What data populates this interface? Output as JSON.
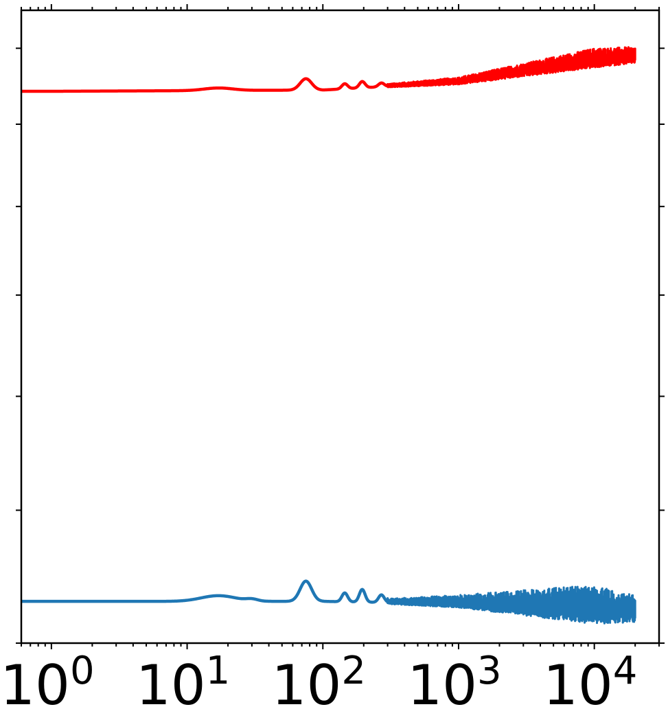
{
  "chart_data": {
    "type": "line",
    "xscale": "log",
    "xlim": [
      0.6,
      30000
    ],
    "ylim": [
      0,
      1
    ],
    "grid": false,
    "legend": "none",
    "x_tick_labels": [
      {
        "base": "10",
        "exp": "0",
        "value": 1
      },
      {
        "base": "10",
        "exp": "1",
        "value": 10
      },
      {
        "base": "10",
        "exp": "2",
        "value": 100
      },
      {
        "base": "10",
        "exp": "3",
        "value": 1000
      },
      {
        "base": "10",
        "exp": "4",
        "value": 10000
      }
    ],
    "y_ticks": [
      0.0,
      0.21,
      0.39,
      0.55,
      0.69,
      0.82,
      0.94
    ],
    "series": [
      {
        "color": "#ff0000",
        "baseline": 0.872,
        "trend": [
          [
            1,
            0.872
          ],
          [
            10,
            0.873
          ],
          [
            100,
            0.874
          ],
          [
            1000,
            0.886
          ],
          [
            10000,
            0.918
          ],
          [
            20000,
            0.924
          ]
        ],
        "features": [
          [
            17,
            0.004,
            0.15
          ],
          [
            75,
            0.018,
            0.06
          ],
          [
            145,
            0.008,
            0.03
          ],
          [
            195,
            0.01,
            0.03
          ],
          [
            270,
            0.006,
            0.03
          ]
        ],
        "noise_start": 300,
        "noise_amp": [
          [
            300,
            0.004
          ],
          [
            1000,
            0.008
          ],
          [
            10000,
            0.022
          ],
          [
            20000,
            0.018
          ]
        ]
      },
      {
        "color": "#1f77b4",
        "baseline": 0.066,
        "trend": [
          [
            1,
            0.066
          ],
          [
            10,
            0.066
          ],
          [
            100,
            0.066
          ],
          [
            1000,
            0.062
          ],
          [
            10000,
            0.048
          ],
          [
            20000,
            0.045
          ]
        ],
        "features": [
          [
            17,
            0.009,
            0.18
          ],
          [
            30,
            0.003,
            0.06
          ],
          [
            75,
            0.032,
            0.06
          ],
          [
            145,
            0.014,
            0.03
          ],
          [
            195,
            0.02,
            0.03
          ],
          [
            270,
            0.012,
            0.03
          ]
        ],
        "noise_start": 300,
        "noise_amp": [
          [
            300,
            0.006
          ],
          [
            1000,
            0.014
          ],
          [
            10000,
            0.044
          ],
          [
            20000,
            0.03
          ]
        ]
      }
    ]
  }
}
